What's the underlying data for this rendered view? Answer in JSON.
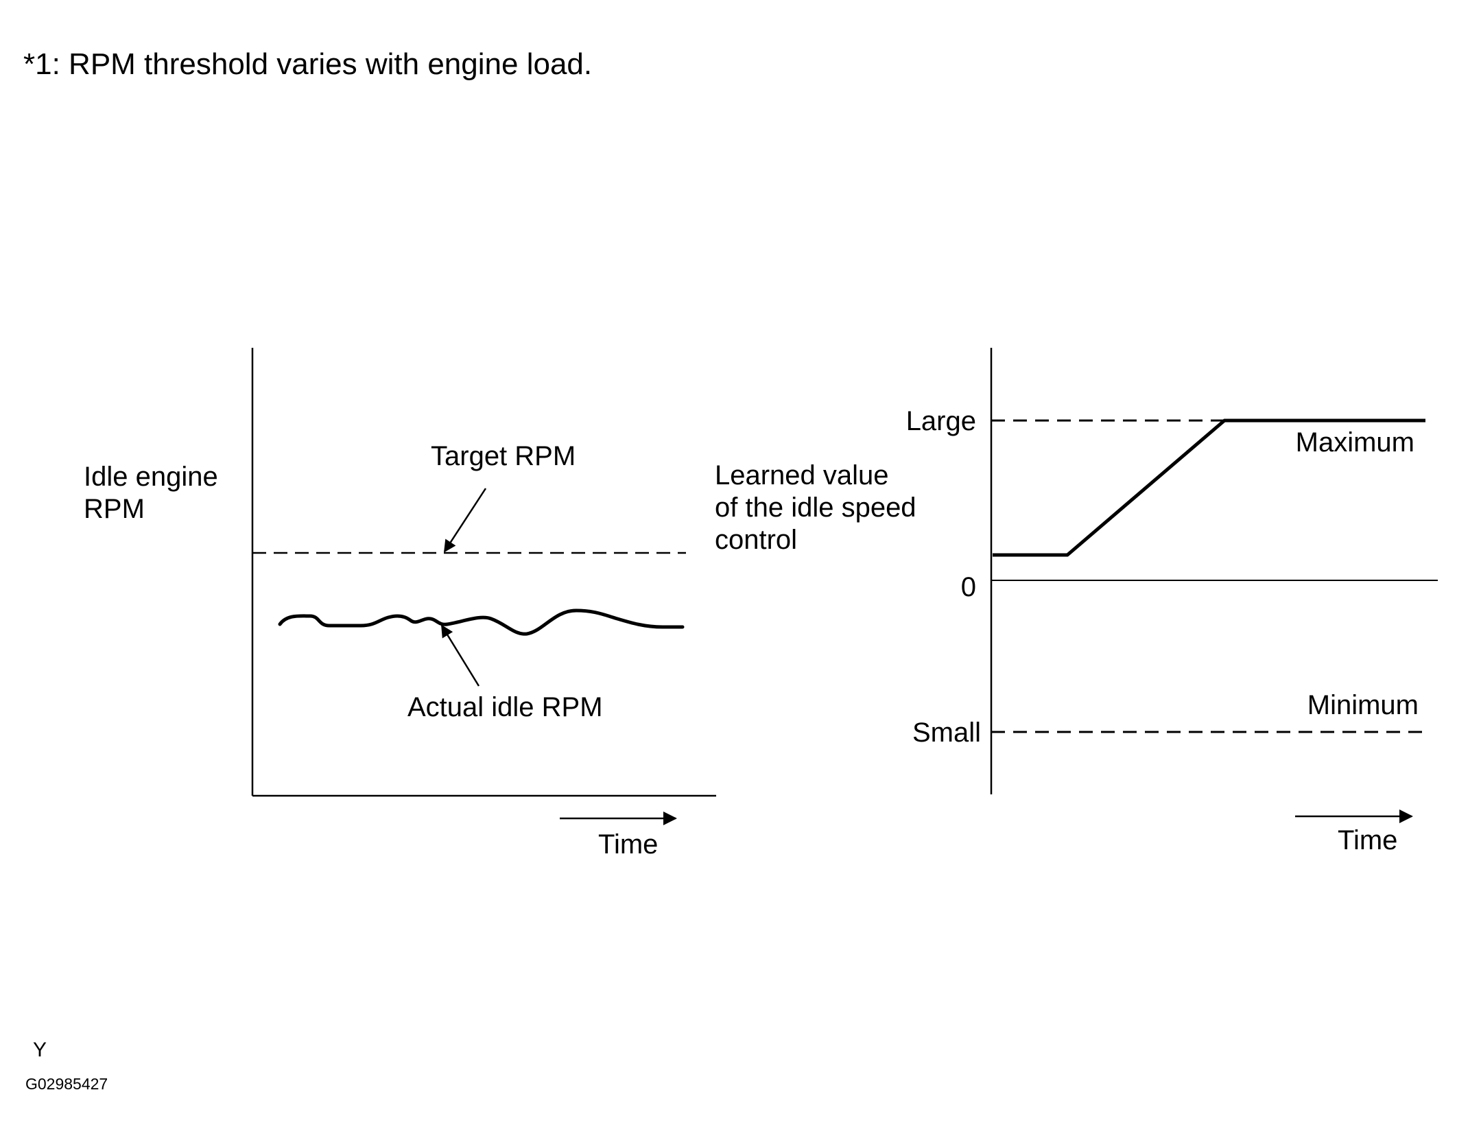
{
  "note": "*1: RPM threshold varies with engine load.",
  "left_chart": {
    "y_label_line1": "Idle engine",
    "y_label_line2": "RPM",
    "target_label": "Target RPM",
    "actual_label": "Actual idle RPM",
    "x_label": "Time"
  },
  "right_chart": {
    "y_label_line1": "Learned value",
    "y_label_line2": "of the idle speed",
    "y_label_line3": "control",
    "large_label": "Large",
    "zero_label": "0",
    "small_label": "Small",
    "maximum_label": "Maximum",
    "minimum_label": "Minimum",
    "x_label": "Time"
  },
  "footer": {
    "mark": "Y",
    "figure_code": "G02985427"
  }
}
